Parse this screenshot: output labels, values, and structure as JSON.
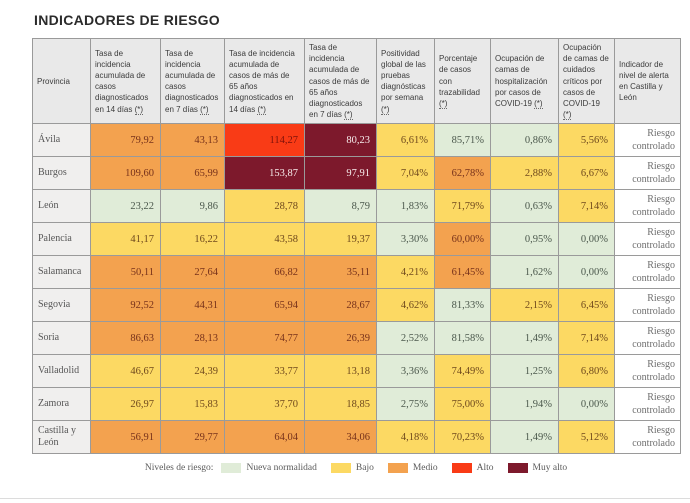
{
  "title": "INDICADORES DE RIESGO",
  "note_marker": "(*)",
  "chart_data": {
    "type": "table",
    "columns": [
      {
        "label": "Provincia",
        "note": false
      },
      {
        "label": "Tasa de incidencia acumulada de casos diagnosticados en 14 días",
        "note": true
      },
      {
        "label": "Tasa de incidencia acumulada de casos diagnosticados en 7 días",
        "note": true
      },
      {
        "label": "Tasa de incidencia acumulada de casos de más de 65 años diagnosticados en 14 días",
        "note": true
      },
      {
        "label": "Tasa de incidencia acumulada de casos de más de 65 años diagnosticados en 7 días",
        "note": true
      },
      {
        "label": "Positividad global de las pruebas diagnósticas por semana",
        "note": true
      },
      {
        "label": "Porcentaje de casos con trazabilidad",
        "note": true
      },
      {
        "label": "Ocupación de camas de hospitalización por casos de COVID-19",
        "note": true
      },
      {
        "label": "Ocupación de camas de cuidados críticos por casos de COVID-19",
        "note": true
      },
      {
        "label": "Indicador de nivel de alerta en Castilla y León",
        "note": false
      }
    ],
    "rows": [
      {
        "province": "Ávila",
        "cells": [
          {
            "value": "79,92",
            "level": "medio"
          },
          {
            "value": "43,13",
            "level": "medio"
          },
          {
            "value": "114,27",
            "level": "alto"
          },
          {
            "value": "80,23",
            "level": "muyalto"
          },
          {
            "value": "6,61%",
            "level": "bajo"
          },
          {
            "value": "85,71%",
            "level": "nn"
          },
          {
            "value": "0,86%",
            "level": "nn"
          },
          {
            "value": "5,56%",
            "level": "bajo"
          }
        ],
        "alert": "Riesgo controlado"
      },
      {
        "province": "Burgos",
        "cells": [
          {
            "value": "109,60",
            "level": "medio"
          },
          {
            "value": "65,99",
            "level": "medio"
          },
          {
            "value": "153,87",
            "level": "muyalto"
          },
          {
            "value": "97,91",
            "level": "muyalto"
          },
          {
            "value": "7,04%",
            "level": "bajo"
          },
          {
            "value": "62,78%",
            "level": "medio"
          },
          {
            "value": "2,88%",
            "level": "bajo"
          },
          {
            "value": "6,67%",
            "level": "bajo"
          }
        ],
        "alert": "Riesgo controlado"
      },
      {
        "province": "León",
        "cells": [
          {
            "value": "23,22",
            "level": "nn"
          },
          {
            "value": "9,86",
            "level": "nn"
          },
          {
            "value": "28,78",
            "level": "bajo"
          },
          {
            "value": "8,79",
            "level": "nn"
          },
          {
            "value": "1,83%",
            "level": "nn"
          },
          {
            "value": "71,79%",
            "level": "bajo"
          },
          {
            "value": "0,63%",
            "level": "nn"
          },
          {
            "value": "7,14%",
            "level": "bajo"
          }
        ],
        "alert": "Riesgo controlado"
      },
      {
        "province": "Palencia",
        "cells": [
          {
            "value": "41,17",
            "level": "bajo"
          },
          {
            "value": "16,22",
            "level": "bajo"
          },
          {
            "value": "43,58",
            "level": "bajo"
          },
          {
            "value": "19,37",
            "level": "bajo"
          },
          {
            "value": "3,30%",
            "level": "nn"
          },
          {
            "value": "60,00%",
            "level": "medio"
          },
          {
            "value": "0,95%",
            "level": "nn"
          },
          {
            "value": "0,00%",
            "level": "nn"
          }
        ],
        "alert": "Riesgo controlado"
      },
      {
        "province": "Salamanca",
        "cells": [
          {
            "value": "50,11",
            "level": "medio"
          },
          {
            "value": "27,64",
            "level": "medio"
          },
          {
            "value": "66,82",
            "level": "medio"
          },
          {
            "value": "35,11",
            "level": "medio"
          },
          {
            "value": "4,21%",
            "level": "bajo"
          },
          {
            "value": "61,45%",
            "level": "medio"
          },
          {
            "value": "1,62%",
            "level": "nn"
          },
          {
            "value": "0,00%",
            "level": "nn"
          }
        ],
        "alert": "Riesgo controlado"
      },
      {
        "province": "Segovia",
        "cells": [
          {
            "value": "92,52",
            "level": "medio"
          },
          {
            "value": "44,31",
            "level": "medio"
          },
          {
            "value": "65,94",
            "level": "medio"
          },
          {
            "value": "28,67",
            "level": "medio"
          },
          {
            "value": "4,62%",
            "level": "bajo"
          },
          {
            "value": "81,33%",
            "level": "nn"
          },
          {
            "value": "2,15%",
            "level": "bajo"
          },
          {
            "value": "6,45%",
            "level": "bajo"
          }
        ],
        "alert": "Riesgo controlado"
      },
      {
        "province": "Soria",
        "cells": [
          {
            "value": "86,63",
            "level": "medio"
          },
          {
            "value": "28,13",
            "level": "medio"
          },
          {
            "value": "74,77",
            "level": "medio"
          },
          {
            "value": "26,39",
            "level": "medio"
          },
          {
            "value": "2,52%",
            "level": "nn"
          },
          {
            "value": "81,58%",
            "level": "nn"
          },
          {
            "value": "1,49%",
            "level": "nn"
          },
          {
            "value": "7,14%",
            "level": "bajo"
          }
        ],
        "alert": "Riesgo controlado"
      },
      {
        "province": "Valladolid",
        "cells": [
          {
            "value": "46,67",
            "level": "bajo"
          },
          {
            "value": "24,39",
            "level": "bajo"
          },
          {
            "value": "33,77",
            "level": "bajo"
          },
          {
            "value": "13,18",
            "level": "bajo"
          },
          {
            "value": "3,36%",
            "level": "nn"
          },
          {
            "value": "74,49%",
            "level": "bajo"
          },
          {
            "value": "1,25%",
            "level": "nn"
          },
          {
            "value": "6,80%",
            "level": "bajo"
          }
        ],
        "alert": "Riesgo controlado"
      },
      {
        "province": "Zamora",
        "cells": [
          {
            "value": "26,97",
            "level": "bajo"
          },
          {
            "value": "15,83",
            "level": "bajo"
          },
          {
            "value": "37,70",
            "level": "bajo"
          },
          {
            "value": "18,85",
            "level": "bajo"
          },
          {
            "value": "2,75%",
            "level": "nn"
          },
          {
            "value": "75,00%",
            "level": "bajo"
          },
          {
            "value": "1,94%",
            "level": "nn"
          },
          {
            "value": "0,00%",
            "level": "nn"
          }
        ],
        "alert": "Riesgo controlado"
      },
      {
        "province": "Castilla y León",
        "cells": [
          {
            "value": "56,91",
            "level": "medio"
          },
          {
            "value": "29,77",
            "level": "medio"
          },
          {
            "value": "64,04",
            "level": "medio"
          },
          {
            "value": "34,06",
            "level": "medio"
          },
          {
            "value": "4,18%",
            "level": "bajo"
          },
          {
            "value": "70,23%",
            "level": "bajo"
          },
          {
            "value": "1,49%",
            "level": "nn"
          },
          {
            "value": "5,12%",
            "level": "bajo"
          }
        ],
        "alert": "Riesgo controlado"
      }
    ]
  },
  "legend": {
    "label": "Niveles de riesgo:",
    "items": [
      {
        "label": "Nueva normalidad",
        "level": "nn",
        "color": "#e0ecd8"
      },
      {
        "label": "Bajo",
        "level": "bajo",
        "color": "#fcd963"
      },
      {
        "label": "Medio",
        "level": "medio",
        "color": "#f3a24f"
      },
      {
        "label": "Alto",
        "level": "alto",
        "color": "#f93b16"
      },
      {
        "label": "Muy alto",
        "level": "muyalto",
        "color": "#7d192c"
      }
    ]
  }
}
